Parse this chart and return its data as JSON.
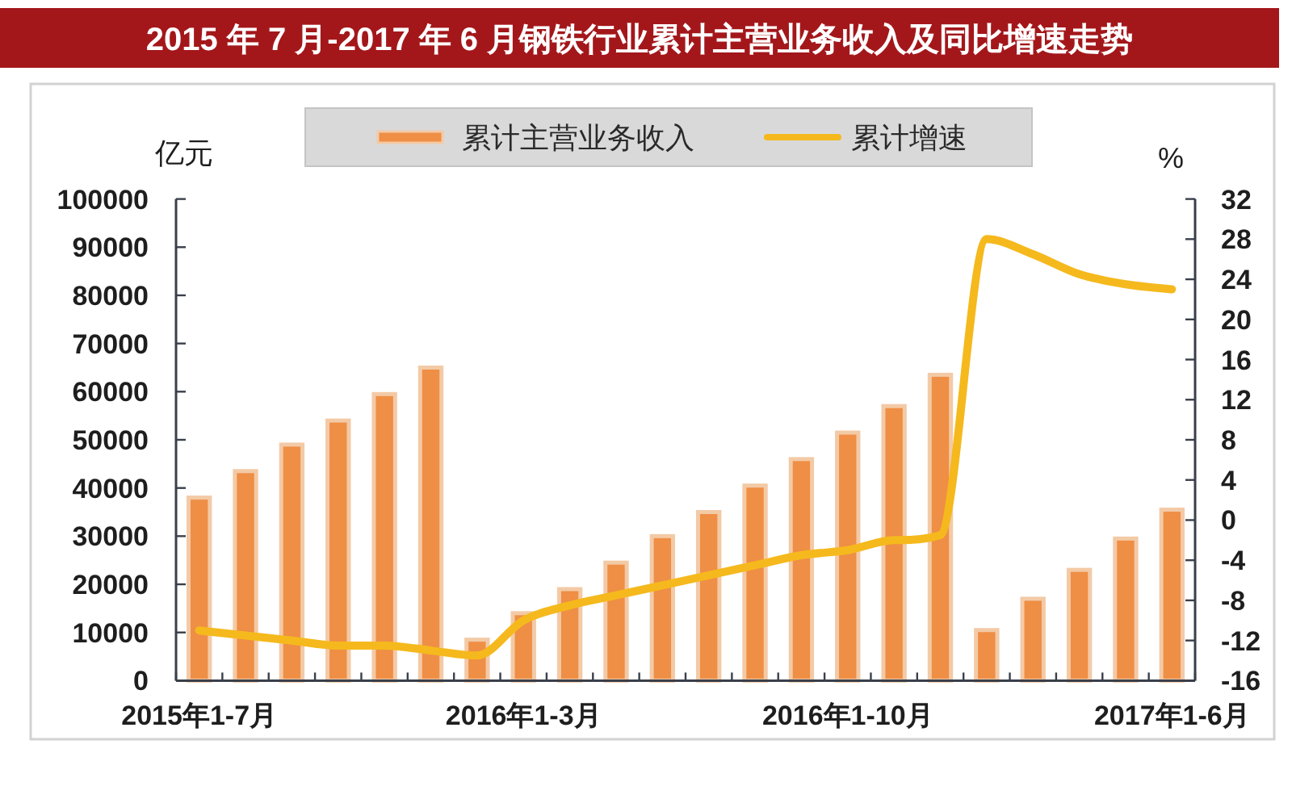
{
  "chart_data": {
    "type": "bar",
    "title": "2015 年 7 月-2017 年 6 月钢铁行业累计主营业务收入及同比增速走势",
    "categories": [
      "2015年1-7月",
      null,
      null,
      null,
      null,
      null,
      null,
      "2016年1-3月",
      null,
      null,
      null,
      null,
      null,
      null,
      "2016年1-10月",
      null,
      null,
      null,
      null,
      null,
      null,
      "2017年1-6月"
    ],
    "ylabel": "亿元",
    "y2label": "%",
    "ylim": [
      0,
      100000
    ],
    "yticks": [
      0,
      10000,
      20000,
      30000,
      40000,
      50000,
      60000,
      70000,
      80000,
      90000,
      100000
    ],
    "y2lim": [
      -16,
      32
    ],
    "y2ticks": [
      -16,
      -12,
      -8,
      -4,
      0,
      4,
      8,
      12,
      16,
      20,
      24,
      28,
      32
    ],
    "legend": "top",
    "series": [
      {
        "name": "累计主营业务收入",
        "color": "#ef8e45",
        "values": [
          38000,
          43500,
          49000,
          54000,
          59500,
          65000,
          8500,
          14000,
          19000,
          24500,
          30000,
          35000,
          40500,
          46000,
          51500,
          57000,
          63500,
          10500,
          17000,
          23000,
          29500,
          35500
        ]
      },
      {
        "name": "累计增速",
        "type": "line",
        "axis": "y2",
        "color": "#f5b91d",
        "values": [
          -11,
          -11.5,
          -12,
          -12.5,
          -12.5,
          -13,
          -13.5,
          -10,
          -8.5,
          -7.5,
          -6.5,
          -5.5,
          -4.5,
          -3.5,
          -3,
          -2,
          -1.5,
          28,
          26.5,
          24.5,
          23.5,
          23
        ]
      }
    ]
  }
}
